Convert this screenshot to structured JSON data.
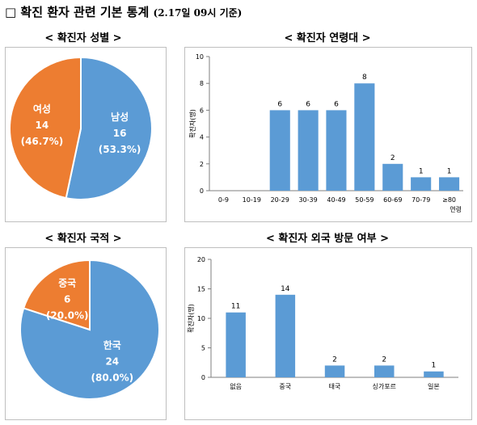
{
  "page": {
    "title": "□ 확진 환자 관련 기본 통계",
    "title_sub": "(2.17일 09시 기준)"
  },
  "colors": {
    "blue": "#5b9bd5",
    "orange": "#ed7d31",
    "axis": "#7f7f7f"
  },
  "chart_data": [
    {
      "type": "pie",
      "title": "< 확진자 성별 >",
      "slices": [
        {
          "name": "남성",
          "value": 16,
          "percent": "(53.3%)",
          "color": "#5b9bd5"
        },
        {
          "name": "여성",
          "value": 14,
          "percent": "(46.7%)",
          "color": "#ed7d31"
        }
      ]
    },
    {
      "type": "bar",
      "title": "< 확진자 연령대 >",
      "categories": [
        "0-9",
        "10-19",
        "20-29",
        "30-39",
        "40-49",
        "50-59",
        "60-69",
        "70-79",
        "≥80"
      ],
      "values": [
        0,
        0,
        6,
        6,
        6,
        8,
        2,
        1,
        1
      ],
      "data_labels": [
        "",
        "",
        "6",
        "6",
        "6",
        "8",
        "2",
        "1",
        "1"
      ],
      "ylabel": "확진자(명)",
      "xlabel": "연령",
      "ylim": [
        0,
        10
      ],
      "yticks": [
        0,
        2,
        4,
        6,
        8,
        10
      ],
      "ytick_labels": [
        "0",
        "2",
        "4",
        "6",
        "8",
        "10"
      ],
      "color": "#5b9bd5"
    },
    {
      "type": "pie",
      "title": "< 확진자 국적 >",
      "slices": [
        {
          "name": "한국",
          "value": 24,
          "percent": "(80.0%)",
          "color": "#5b9bd5"
        },
        {
          "name": "중국",
          "value": 6,
          "percent": "(20.0%)",
          "color": "#ed7d31"
        }
      ]
    },
    {
      "type": "bar",
      "title": "< 확진자 외국 방문 여부 >",
      "categories": [
        "없음",
        "중국",
        "태국",
        "싱가포르",
        "일본"
      ],
      "values": [
        11,
        14,
        2,
        2,
        1
      ],
      "data_labels": [
        "11",
        "14",
        "2",
        "2",
        "1"
      ],
      "ylabel": "확진자(명)",
      "ylim": [
        0,
        20
      ],
      "yticks": [
        0,
        5,
        10,
        15,
        20
      ],
      "ytick_labels": [
        "0",
        "5",
        "10",
        "15",
        "20"
      ],
      "color": "#5b9bd5"
    }
  ]
}
